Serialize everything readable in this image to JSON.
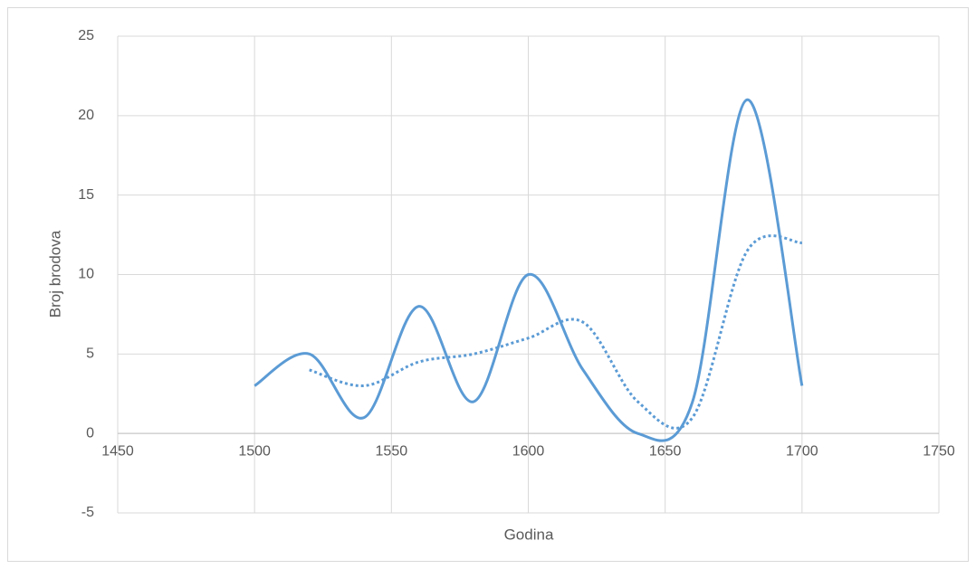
{
  "chart_data": {
    "type": "line",
    "x_label": "Godina",
    "y_label": "Broj brodova",
    "xlim": [
      1450,
      1750
    ],
    "xticks": [
      1450,
      1500,
      1550,
      1600,
      1650,
      1700,
      1750
    ],
    "ylim": [
      -5,
      25
    ],
    "yticks": [
      -5,
      0,
      5,
      10,
      15,
      20,
      25
    ],
    "grid": true,
    "smooth": true,
    "series": [
      {
        "color": "#5b9bd5",
        "dash": "solid",
        "x": [
          1500,
          1520,
          1540,
          1560,
          1580,
          1600,
          1620,
          1640,
          1660,
          1680,
          1700
        ],
        "values": [
          3,
          5,
          1,
          8,
          2,
          10,
          4,
          0,
          2,
          21,
          3
        ]
      },
      {
        "color": "#5b9bd5",
        "dash": "dotted",
        "x": [
          1520,
          1540,
          1560,
          1580,
          1600,
          1620,
          1640,
          1660,
          1680,
          1700
        ],
        "values": [
          4,
          3,
          4.5,
          5,
          6,
          7,
          2,
          1,
          11.5,
          12
        ]
      }
    ]
  }
}
